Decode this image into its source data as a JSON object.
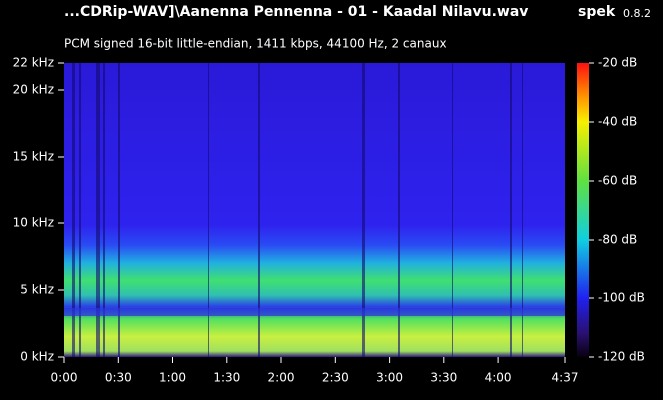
{
  "header": {
    "file_title": "...CDRip-WAV]\\Aanenna Pennenna - 01 - Kaadal Nilavu.wav",
    "app_name": "spek",
    "app_version": "0.8.2",
    "stream_info": "PCM signed 16-bit little-endian, 1411 kbps, 44100 Hz, 2 canaux"
  },
  "frequency_axis": {
    "labels": [
      "22 kHz",
      "20 kHz",
      "15 kHz",
      "10 kHz",
      "5 kHz",
      "0 kHz"
    ]
  },
  "time_axis": {
    "labels": [
      "0:00",
      "0:30",
      "1:00",
      "1:30",
      "2:00",
      "2:30",
      "3:00",
      "3:30",
      "4:00",
      "4:37"
    ]
  },
  "level_scale": {
    "labels": [
      "-20 dB",
      "-40 dB",
      "-60 dB",
      "-80 dB",
      "-100 dB",
      "-120 dB"
    ]
  }
}
